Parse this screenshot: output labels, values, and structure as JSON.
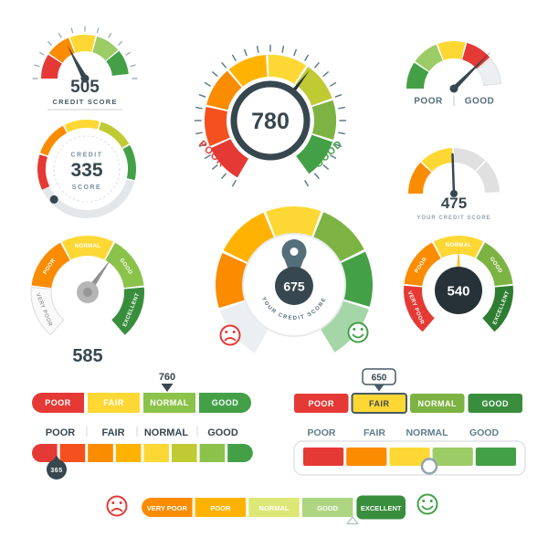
{
  "colors": {
    "red": "#e53935",
    "deep_orange": "#f4511e",
    "orange": "#fb8c00",
    "amber": "#ffb300",
    "yellow": "#fdd835",
    "lime": "#c0ca33",
    "light_green": "#8bc34a",
    "green": "#43a047",
    "dark_green": "#388e3c",
    "darker_green": "#2e7d32",
    "dark_slate": "#37474f",
    "near_black": "#263238",
    "gray_needle": "#9e9e9e",
    "light_gray": "#e0e0e0",
    "pale": "#eceff1"
  },
  "gauge_505": {
    "value": "505",
    "label": "CREDIT SCORE"
  },
  "gauge_780": {
    "value": "780",
    "poor": "POOR",
    "good": "GOOD"
  },
  "gauge_needle": {
    "poor": "POOR",
    "good": "GOOD"
  },
  "gauge_335": {
    "line1": "CREDIT",
    "value": "335",
    "line2": "SCORE"
  },
  "gauge_475": {
    "value": "475",
    "label": "YOUR CREDIT SCORE"
  },
  "gauge_585": {
    "value": "585",
    "segments": [
      "VERY POOR",
      "POOR",
      "NORMAL",
      "GOOD",
      "EXCELLENT"
    ]
  },
  "gauge_675": {
    "value": "675",
    "label": "YOUR CREDIT SCORE"
  },
  "gauge_540": {
    "value": "540",
    "segments": [
      "VERY POOR",
      "POOR",
      "NORMAL",
      "GOOD",
      "EXCELLENT"
    ]
  },
  "bar_760": {
    "marker": "760",
    "segments": [
      "POOR",
      "FAIR",
      "NORMAL",
      "GOOD"
    ]
  },
  "bar_650": {
    "marker": "650",
    "segments": [
      "POOR",
      "FAIR",
      "NORMAL",
      "GOOD"
    ]
  },
  "bar_365": {
    "marker": "365",
    "labels": [
      "POOR",
      "FAIR",
      "NORMAL",
      "GOOD"
    ]
  },
  "bar_panel": {
    "labels": [
      "POOR",
      "FAIR",
      "NORMAL",
      "GOOD"
    ]
  },
  "bar_rating": {
    "segments": [
      "VERY POOR",
      "POOR",
      "NORMAL",
      "GOOD",
      "EXCELLENT"
    ]
  },
  "chart_data": [
    {
      "type": "gauge",
      "id": "credit-score-505",
      "value": 505,
      "label": "CREDIT SCORE",
      "style": "semicircle-segment-arc-needle",
      "scale_colors": [
        "#e53935",
        "#fb8c00",
        "#fdd835",
        "#9ccc65",
        "#43a047"
      ]
    },
    {
      "type": "gauge",
      "id": "speedometer-780",
      "value": 780,
      "min_label": "POOR",
      "max_label": "GOOD",
      "style": "speedometer-ticks-dark-bezel"
    },
    {
      "type": "gauge",
      "id": "poor-good-meter",
      "min_label": "POOR",
      "max_label": "GOOD",
      "style": "semicircle-arc-long-needle"
    },
    {
      "type": "gauge",
      "id": "credit-score-335",
      "value": 335,
      "label": "CREDIT SCORE",
      "style": "circular-ring-dot-marker"
    },
    {
      "type": "gauge",
      "id": "your-credit-score-475",
      "value": 475,
      "label": "YOUR CREDIT SCORE",
      "style": "semicircle-arc-needle"
    },
    {
      "type": "gauge",
      "id": "rating-585",
      "value": 585,
      "scale_labels": [
        "VERY POOR",
        "POOR",
        "NORMAL",
        "GOOD",
        "EXCELLENT"
      ],
      "style": "circular-labeled-segments-gray-needle"
    },
    {
      "type": "gauge",
      "id": "your-credit-score-675",
      "value": 675,
      "label": "YOUR CREDIT SCORE",
      "style": "wedge-dial-pin-pointer",
      "mood_icons": [
        "sad",
        "happy"
      ]
    },
    {
      "type": "gauge",
      "id": "rating-540",
      "value": 540,
      "scale_labels": [
        "VERY POOR",
        "POOR",
        "NORMAL",
        "GOOD",
        "EXCELLENT"
      ],
      "style": "circular-labeled-segments-dark-center"
    },
    {
      "type": "bar",
      "id": "scale-760",
      "value": 760,
      "categories": [
        "POOR",
        "FAIR",
        "NORMAL",
        "GOOD"
      ],
      "style": "segment-bar-arrow-marker"
    },
    {
      "type": "bar",
      "id": "scale-650",
      "value": 650,
      "categories": [
        "POOR",
        "FAIR",
        "NORMAL",
        "GOOD"
      ],
      "highlighted": "FAIR",
      "style": "segment-bar-tag-marker"
    },
    {
      "type": "bar",
      "id": "scale-365",
      "value": 365,
      "categories": [
        "POOR",
        "FAIR",
        "NORMAL",
        "GOOD"
      ],
      "style": "gradient-step-bar-badge-marker"
    },
    {
      "type": "bar",
      "id": "scale-panel",
      "categories": [
        "POOR",
        "FAIR",
        "NORMAL",
        "GOOD"
      ],
      "style": "segment-bar-in-panel-circle-marker"
    },
    {
      "type": "bar",
      "id": "rating-bar",
      "categories": [
        "VERY POOR",
        "POOR",
        "NORMAL",
        "GOOD",
        "EXCELLENT"
      ],
      "highlighted": "EXCELLENT",
      "style": "segment-bar-mood-icons"
    }
  ]
}
